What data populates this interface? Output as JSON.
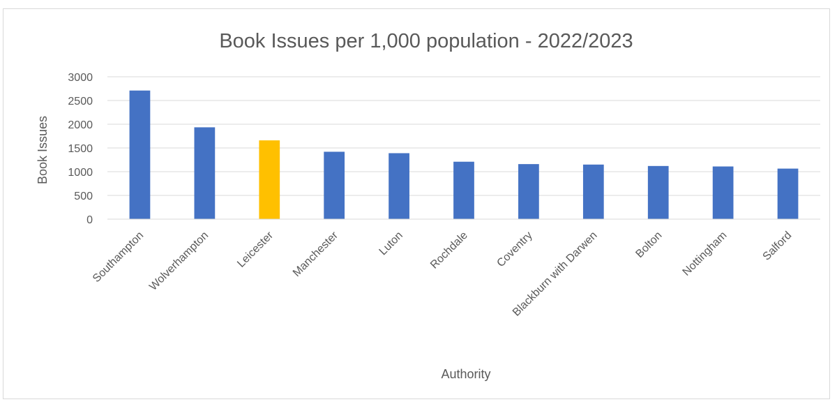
{
  "chart_data": {
    "type": "bar",
    "title": "Book Issues per 1,000 population - 2022/2023",
    "xlabel": "Authority",
    "ylabel": "Book Issues",
    "ylim": [
      0,
      3000
    ],
    "yticks": [
      0,
      500,
      1000,
      1500,
      2000,
      2500,
      3000
    ],
    "grid": true,
    "legend": "none",
    "categories": [
      "Southampton",
      "Wolverhampton",
      "Leicester",
      "Manchester",
      "Luton",
      "Rochdale",
      "Coventry",
      "Blackburn with Darwen",
      "Bolton",
      "Nottingham",
      "Salford"
    ],
    "values": [
      2710,
      1935,
      1660,
      1420,
      1390,
      1210,
      1160,
      1150,
      1120,
      1110,
      1065
    ],
    "colors": {
      "default": "#4472C4",
      "highlight": "#FFC000",
      "highlight_category": "Leicester",
      "grid": "#d9d9d9",
      "text": "#595959"
    }
  }
}
